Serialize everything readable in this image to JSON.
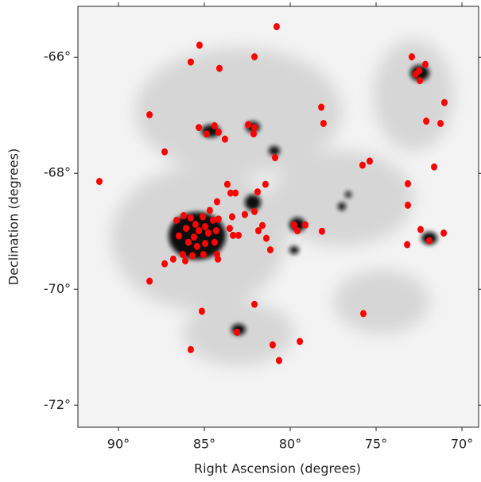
{
  "chart_data": {
    "type": "scatter",
    "xlabel": "Right Ascension (degrees)",
    "ylabel": "Declination (degrees)",
    "color": "#ff0000",
    "xlim": [
      92.36,
      69.03
    ],
    "ylim": [
      -72.38,
      -65.12
    ],
    "xticks": [
      {
        "value": 90,
        "label": "90°"
      },
      {
        "value": 85,
        "label": "85°"
      },
      {
        "value": 80,
        "label": "80°"
      },
      {
        "value": 75,
        "label": "75°"
      },
      {
        "value": 70,
        "label": "70°"
      }
    ],
    "yticks": [
      {
        "value": -66,
        "label": "-66°"
      },
      {
        "value": -68,
        "label": "-68°"
      },
      {
        "value": -70,
        "label": "-70°"
      },
      {
        "value": -72,
        "label": "-72°"
      }
    ],
    "x": [
      80.79,
      85.28,
      85.79,
      84.12,
      82.08,
      72.92,
      72.13,
      72.5,
      72.69,
      72.45,
      88.19,
      78.19,
      78.06,
      85.32,
      84.86,
      84.4,
      84.17,
      83.8,
      82.45,
      82.08,
      82.13,
      87.31,
      80.88,
      72.08,
      71.02,
      71.25,
      75.79,
      75.37,
      71.62,
      91.11,
      83.66,
      83.47,
      83.19,
      81.44,
      81.9,
      73.15,
      73.15,
      84.26,
      84.68,
      84.17,
      86.62,
      86.2,
      85.79,
      85.51,
      85.09,
      84.49,
      84.95,
      85.32,
      86.06,
      86.48,
      85.6,
      84.77,
      84.31,
      85.93,
      85.42,
      84.95,
      84.4,
      86.25,
      85.69,
      85.05,
      84.26,
      84.21,
      86.11,
      86.81,
      87.31,
      83.38,
      83.52,
      83.33,
      83.01,
      82.64,
      82.08,
      81.62,
      81.85,
      81.39,
      81.16,
      79.77,
      79.58,
      79.12,
      78.15,
      72.41,
      71.9,
      71.06,
      73.19,
      88.19,
      85.14,
      82.08,
      75.74,
      83.1,
      85.79,
      81.02,
      79.44,
      80.65
    ],
    "y": [
      -65.47,
      -65.79,
      -66.08,
      -66.19,
      -65.99,
      -65.99,
      -66.12,
      -66.23,
      -66.29,
      -66.4,
      -66.99,
      -66.86,
      -67.14,
      -67.21,
      -67.32,
      -67.18,
      -67.29,
      -67.41,
      -67.16,
      -67.21,
      -67.32,
      -67.63,
      -67.73,
      -67.1,
      -66.78,
      -67.14,
      -67.86,
      -67.79,
      -67.89,
      -68.14,
      -68.19,
      -68.34,
      -68.34,
      -68.19,
      -68.32,
      -68.18,
      -68.55,
      -68.49,
      -68.64,
      -68.79,
      -68.81,
      -68.73,
      -68.77,
      -68.88,
      -68.75,
      -68.81,
      -68.92,
      -68.99,
      -68.95,
      -69.08,
      -69.1,
      -69.03,
      -68.99,
      -69.19,
      -69.26,
      -69.21,
      -69.19,
      -69.4,
      -69.42,
      -69.4,
      -69.4,
      -69.48,
      -69.51,
      -69.48,
      -69.56,
      -68.75,
      -68.95,
      -69.07,
      -69.07,
      -68.71,
      -68.66,
      -68.9,
      -68.99,
      -69.12,
      -69.32,
      -68.89,
      -68.99,
      -68.89,
      -69.0,
      -68.97,
      -69.16,
      -69.03,
      -69.23,
      -69.86,
      -70.38,
      -70.26,
      -70.42,
      -70.74,
      -71.04,
      -70.96,
      -70.9,
      -71.23
    ]
  }
}
